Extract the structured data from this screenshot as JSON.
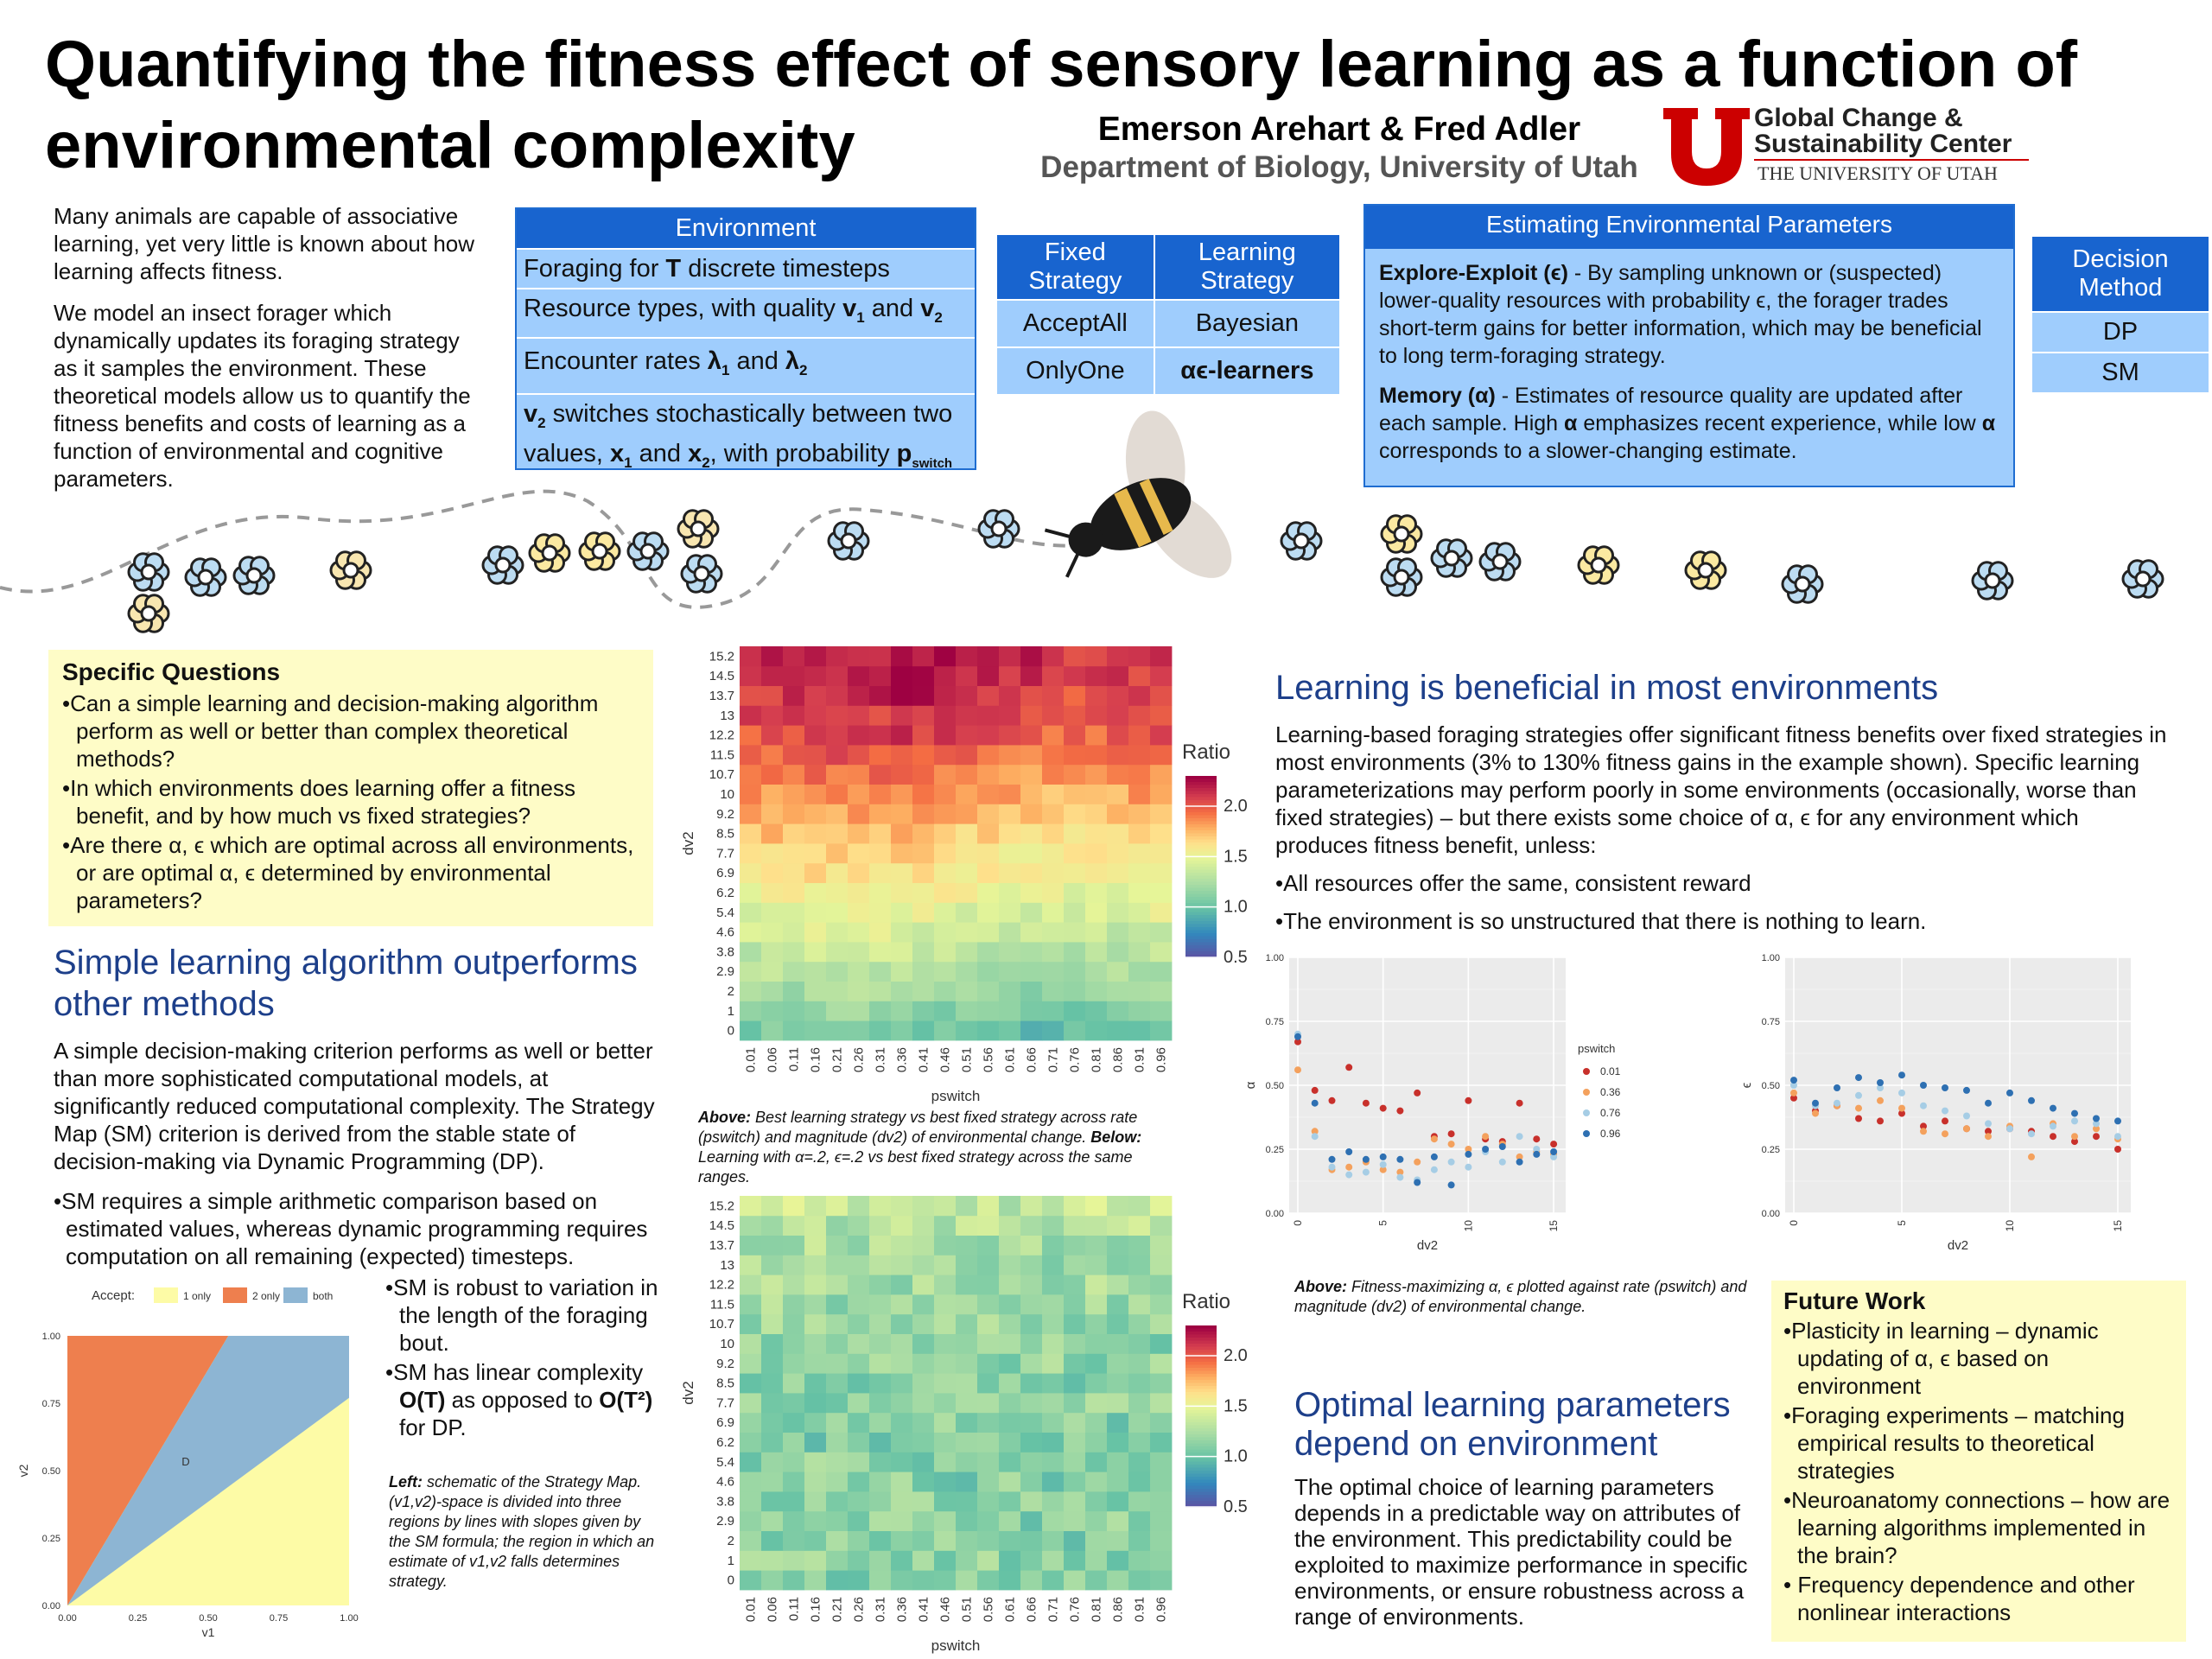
{
  "title": "Quantifying the fitness effect of sensory learning as a function of environmental complexity",
  "authors": "Emerson Arehart & Fred Adler",
  "department": "Department of Biology, University of Utah",
  "logo": {
    "line1": "Global Change &",
    "line2": "Sustainability Center",
    "line3": "THE UNIVERSITY OF UTAH",
    "mark": "U",
    "color": "#cc0000"
  },
  "intro": [
    "Many animals are capable of associative learning, yet very little is known about how learning affects fitness.",
    "We model an insect forager which dynamically updates its foraging strategy as it samples the environment. These theoretical models allow us to quantify the fitness benefits and costs of learning as a function of environmental and cognitive parameters."
  ],
  "environment": {
    "header": "Environment",
    "row1": {
      "a": "Foraging for ",
      "b": "T",
      "c": " discrete timesteps"
    },
    "row2": {
      "a": "Resource types, with quality ",
      "b": "v",
      "s1": "1",
      "c": " and ",
      "d": "v",
      "s2": "2"
    },
    "row3": {
      "a": "Encounter rates ",
      "b": "λ",
      "s1": "1",
      "c": " and ",
      "d": "λ",
      "s2": "2"
    },
    "row4": {
      "a": "v",
      "s1": "2",
      "b": " switches stochastically between two values, ",
      "c": "x",
      "s2": "1",
      "d": " and ",
      "e": "x",
      "s3": "2",
      "f": ", with probability ",
      "g": "p",
      "s4": "switch"
    }
  },
  "strategy": {
    "fixed_header": "Fixed Strategy",
    "learning_header": "Learning Strategy",
    "fixed": [
      "AcceptAll",
      "OnlyOne"
    ],
    "learning": [
      "Bayesian",
      "αϵ-learners"
    ]
  },
  "estimating": {
    "header": "Estimating Environmental Parameters",
    "p1_bold": "Explore-Exploit (ϵ)",
    "p1_text": " - By sampling unknown or (suspected) lower-quality resources with probability ϵ, the forager trades short-term gains for better information, which may be beneficial to long term-foraging strategy.",
    "p2_bold": "Memory (α)",
    "p2_text_a": " - Estimates of resource quality are updated after each sample. High ",
    "p2_alpha": "α",
    "p2_text_b": " emphasizes recent experience, while low ",
    "p2_text_c": " corresponds to a slower-changing estimate."
  },
  "decision": {
    "header": "Decision Method",
    "items": [
      "DP",
      "SM"
    ]
  },
  "questions": {
    "header": "Specific Questions",
    "items": [
      "Can a simple learning and decision-making algorithm perform as well or better than complex theoretical methods?",
      "In which environments does learning offer a fitness benefit, and by how much vs fixed strategies?",
      "Are there α, ϵ which are optimal across all environments, or are optimal α, ϵ determined by environmental parameters?"
    ]
  },
  "simple": {
    "heading": "Simple learning algorithm outperforms other methods",
    "body": "A simple decision-making criterion performs as well or better than more sophisticated computational models, at significantly reduced computational complexity. The Strategy Map (SM) criterion is derived from the stable state of decision-making via Dynamic Programming (DP).",
    "bullet1": "SM requires a simple arithmetic comparison based on estimated values, whereas dynamic programming requires computation on all remaining (expected) timesteps.",
    "bullet2": "SM is robust to variation in the length of the foraging bout.",
    "bullet3_a": "SM has linear complexity ",
    "bullet3_b": "O(T)",
    "bullet3_c": " as opposed to ",
    "bullet3_d": "O(T²)",
    "bullet3_e": " for DP.",
    "caption_lead": "Left:",
    "caption_text": " schematic of the Strategy Map. (v1,v2)-space is divided into three regions by lines with slopes given by the SM formula; the region in which an estimate of v1,v2 falls determines strategy."
  },
  "strategy_map": {
    "legend_title": "Accept:",
    "legend": [
      "1 only",
      "2 only",
      "both"
    ],
    "colors": {
      "one_only": "#fdfba6",
      "two_only": "#ee7f4e",
      "both": "#8db5d3"
    },
    "region_label": "D",
    "xlabel": "v1",
    "ylabel": "v2",
    "ticks": [
      "0.00",
      "0.25",
      "0.50",
      "0.75",
      "1.00"
    ]
  },
  "heatmap_top": {
    "title": "Ratio",
    "xlabel": "pswitch",
    "ylabel": "dv2",
    "legend_ticks": [
      "2.0",
      "1.5",
      "1.0",
      "0.5"
    ]
  },
  "heatmap_bottom": {
    "title": "Ratio",
    "xlabel": "pswitch",
    "ylabel": "dv2",
    "legend_ticks": [
      "2.0",
      "1.5",
      "1.0",
      "0.5"
    ]
  },
  "heatmap_caption": {
    "above": "Above:",
    "text1": " Best learning strategy vs best fixed strategy across rate (pswitch) and magnitude (dv2) of environmental change. ",
    "below": "Below:",
    "text2": " Learning with α=.2, ϵ=.2 vs best fixed strategy across the same ranges."
  },
  "learning": {
    "heading": "Learning is beneficial in most environments",
    "body": "Learning-based foraging strategies offer significant fitness benefits over fixed strategies in most environments (3% to 130% fitness gains in the example shown). Specific learning parameterizations may perform poorly in some environments (occasionally, worse than fixed strategies) – but there exists some choice of α, ϵ for any environment which produces fitness benefit, unless:",
    "bullets": [
      "All resources offer the same, consistent reward",
      "The environment is so unstructured that there is nothing to learn."
    ]
  },
  "scatter_caption": {
    "above": "Above:",
    "text": " Fitness-maximizing α, ϵ plotted against rate (pswitch) and magnitude (dv2) of environmental change."
  },
  "optimal": {
    "heading": "Optimal learning parameters depend on environment",
    "body": "The optimal choice of learning parameters depends in a predictable way on attributes of the environment. This predictability could be exploited to maximize performance in specific environments, or ensure robustness across a range of environments."
  },
  "future": {
    "header": "Future Work",
    "items": [
      "Plasticity in learning – dynamic updating of α, ϵ based on environment",
      "Foraging experiments – matching empirical results to theoretical strategies",
      "Neuroanatomy connections – how are learning algorithms implemented in the brain?",
      " Frequency dependence and other nonlinear interactions"
    ]
  },
  "chart_data": [
    {
      "type": "heatmap",
      "title": "Ratio",
      "xlabel": "pswitch",
      "ylabel": "dv2",
      "x": [
        "0.01",
        "0.06",
        "0.11",
        "0.16",
        "0.21",
        "0.26",
        "0.31",
        "0.36",
        "0.41",
        "0.46",
        "0.51",
        "0.56",
        "0.61",
        "0.66",
        "0.71",
        "0.76",
        "0.81",
        "0.86",
        "0.91",
        "0.96"
      ],
      "y": [
        "0",
        "1",
        "2",
        "2.9",
        "3.8",
        "4.6",
        "5.4",
        "6.2",
        "6.9",
        "7.7",
        "8.5",
        "9.2",
        "10",
        "10.7",
        "11.5",
        "12.2",
        "13",
        "13.7",
        "14.5",
        "15.2"
      ],
      "row_means": [
        1.05,
        1.12,
        1.2,
        1.28,
        1.33,
        1.4,
        1.48,
        1.55,
        1.6,
        1.66,
        1.72,
        1.78,
        1.84,
        1.9,
        1.96,
        2.02,
        2.06,
        2.1,
        2.13,
        2.15
      ],
      "color_range": [
        0.5,
        2.3
      ]
    },
    {
      "type": "heatmap",
      "title": "Ratio",
      "xlabel": "pswitch",
      "ylabel": "dv2",
      "x": [
        "0.01",
        "0.06",
        "0.11",
        "0.16",
        "0.21",
        "0.26",
        "0.31",
        "0.36",
        "0.41",
        "0.46",
        "0.51",
        "0.56",
        "0.61",
        "0.66",
        "0.71",
        "0.76",
        "0.81",
        "0.86",
        "0.91",
        "0.96"
      ],
      "y": [
        "0",
        "1",
        "2",
        "2.9",
        "3.8",
        "4.6",
        "5.4",
        "6.2",
        "6.9",
        "7.7",
        "8.5",
        "9.2",
        "10",
        "10.7",
        "11.5",
        "12.2",
        "13",
        "13.7",
        "14.5",
        "15.2"
      ],
      "row_means": [
        1.12,
        1.15,
        1.12,
        1.13,
        1.14,
        1.12,
        1.14,
        1.1,
        1.12,
        1.15,
        1.13,
        1.16,
        1.15,
        1.18,
        1.2,
        1.22,
        1.2,
        1.25,
        1.3,
        1.35
      ],
      "color_range": [
        0.5,
        2.3
      ]
    },
    {
      "type": "scatter",
      "xlabel": "dv2",
      "ylabel": "α",
      "ylim": [
        0,
        1
      ],
      "xlim": [
        0,
        15.2
      ],
      "legend_title": "pswitch",
      "series": [
        {
          "name": "0.01",
          "color": "#c8302b",
          "points": [
            [
              0,
              0.67
            ],
            [
              1,
              0.48
            ],
            [
              2,
              0.44
            ],
            [
              3,
              0.57
            ],
            [
              4,
              0.43
            ],
            [
              5,
              0.41
            ],
            [
              6,
              0.4
            ],
            [
              7,
              0.47
            ],
            [
              8,
              0.3
            ],
            [
              9,
              0.31
            ],
            [
              10,
              0.44
            ],
            [
              11,
              0.29
            ],
            [
              12,
              0.28
            ],
            [
              13,
              0.43
            ],
            [
              14,
              0.29
            ],
            [
              15,
              0.27
            ]
          ]
        },
        {
          "name": "0.36",
          "color": "#f4a15d",
          "points": [
            [
              0,
              0.56
            ],
            [
              1,
              0.32
            ],
            [
              2,
              0.17
            ],
            [
              3,
              0.18
            ],
            [
              4,
              0.2
            ],
            [
              5,
              0.17
            ],
            [
              6,
              0.16
            ],
            [
              7,
              0.2
            ],
            [
              8,
              0.29
            ],
            [
              9,
              0.27
            ],
            [
              10,
              0.25
            ],
            [
              11,
              0.3
            ],
            [
              12,
              0.27
            ],
            [
              13,
              0.22
            ],
            [
              14,
              0.24
            ],
            [
              15,
              0.23
            ]
          ]
        },
        {
          "name": "0.76",
          "color": "#a6cde5",
          "points": [
            [
              0,
              0.7
            ],
            [
              1,
              0.3
            ],
            [
              2,
              0.18
            ],
            [
              3,
              0.15
            ],
            [
              4,
              0.16
            ],
            [
              5,
              0.19
            ],
            [
              6,
              0.14
            ],
            [
              7,
              0.13
            ],
            [
              8,
              0.17
            ],
            [
              9,
              0.2
            ],
            [
              10,
              0.18
            ],
            [
              11,
              0.24
            ],
            [
              12,
              0.2
            ],
            [
              13,
              0.3
            ],
            [
              14,
              0.25
            ],
            [
              15,
              0.22
            ]
          ]
        },
        {
          "name": "0.96",
          "color": "#2e70b2",
          "points": [
            [
              0,
              0.69
            ],
            [
              1,
              0.43
            ],
            [
              2,
              0.21
            ],
            [
              3,
              0.24
            ],
            [
              4,
              0.21
            ],
            [
              5,
              0.22
            ],
            [
              6,
              0.21
            ],
            [
              7,
              0.12
            ],
            [
              8,
              0.22
            ],
            [
              9,
              0.11
            ],
            [
              10,
              0.23
            ],
            [
              11,
              0.25
            ],
            [
              12,
              0.26
            ],
            [
              13,
              0.2
            ],
            [
              14,
              0.23
            ],
            [
              15,
              0.24
            ]
          ]
        }
      ]
    },
    {
      "type": "scatter",
      "xlabel": "dv2",
      "ylabel": "ϵ",
      "ylim": [
        0,
        1
      ],
      "xlim": [
        0,
        15.2
      ],
      "series": [
        {
          "name": "0.01",
          "color": "#c8302b",
          "points": [
            [
              0,
              0.45
            ],
            [
              1,
              0.4
            ],
            [
              2,
              0.42
            ],
            [
              3,
              0.37
            ],
            [
              4,
              0.36
            ],
            [
              5,
              0.39
            ],
            [
              6,
              0.34
            ],
            [
              7,
              0.36
            ],
            [
              8,
              0.33
            ],
            [
              9,
              0.32
            ],
            [
              10,
              0.33
            ],
            [
              11,
              0.32
            ],
            [
              12,
              0.3
            ],
            [
              13,
              0.28
            ],
            [
              14,
              0.3
            ],
            [
              15,
              0.25
            ]
          ]
        },
        {
          "name": "0.36",
          "color": "#f4a15d",
          "points": [
            [
              0,
              0.47
            ],
            [
              1,
              0.39
            ],
            [
              2,
              0.42
            ],
            [
              3,
              0.41
            ],
            [
              4,
              0.44
            ],
            [
              5,
              0.41
            ],
            [
              6,
              0.32
            ],
            [
              7,
              0.31
            ],
            [
              8,
              0.33
            ],
            [
              9,
              0.3
            ],
            [
              10,
              0.34
            ],
            [
              11,
              0.22
            ],
            [
              12,
              0.35
            ],
            [
              13,
              0.3
            ],
            [
              14,
              0.33
            ],
            [
              15,
              0.29
            ]
          ]
        },
        {
          "name": "0.76",
          "color": "#a6cde5",
          "points": [
            [
              0,
              0.5
            ],
            [
              1,
              0.42
            ],
            [
              2,
              0.43
            ],
            [
              3,
              0.46
            ],
            [
              4,
              0.49
            ],
            [
              5,
              0.47
            ],
            [
              6,
              0.42
            ],
            [
              7,
              0.4
            ],
            [
              8,
              0.38
            ],
            [
              9,
              0.35
            ],
            [
              10,
              0.33
            ],
            [
              11,
              0.31
            ],
            [
              12,
              0.34
            ],
            [
              13,
              0.36
            ],
            [
              14,
              0.35
            ],
            [
              15,
              0.3
            ]
          ]
        },
        {
          "name": "0.96",
          "color": "#2e70b2",
          "points": [
            [
              0,
              0.52
            ],
            [
              1,
              0.43
            ],
            [
              2,
              0.49
            ],
            [
              3,
              0.53
            ],
            [
              4,
              0.51
            ],
            [
              5,
              0.54
            ],
            [
              6,
              0.5
            ],
            [
              7,
              0.49
            ],
            [
              8,
              0.48
            ],
            [
              9,
              0.43
            ],
            [
              10,
              0.47
            ],
            [
              11,
              0.44
            ],
            [
              12,
              0.41
            ],
            [
              13,
              0.39
            ],
            [
              14,
              0.37
            ],
            [
              15,
              0.36
            ]
          ]
        }
      ]
    },
    {
      "type": "area",
      "title": "",
      "xlabel": "v1",
      "ylabel": "v2",
      "xlim": [
        0,
        1
      ],
      "ylim": [
        0,
        1
      ],
      "regions": [
        {
          "name": "2 only",
          "boundary_slope": 1.75
        },
        {
          "name": "both",
          "between_slopes": [
            0.77,
            1.75
          ]
        },
        {
          "name": "1 only",
          "boundary_slope": 0.77
        }
      ]
    }
  ]
}
